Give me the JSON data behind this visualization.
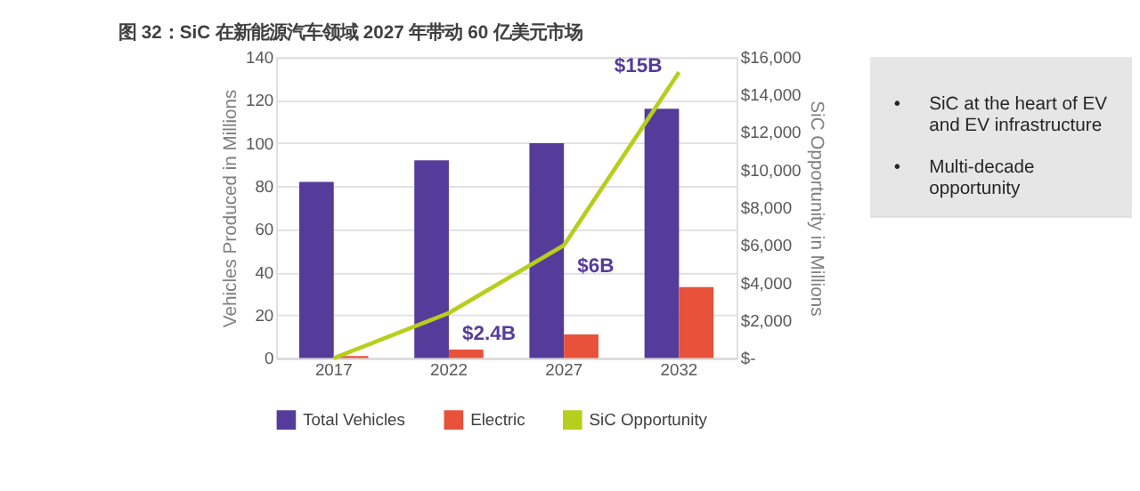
{
  "chart_data": [
    {
      "type": "bar",
      "title": "图 32：SiC 在新能源汽车领域 2027 年带动 60 亿美元市场",
      "categories": [
        "2017",
        "2022",
        "2027",
        "2032"
      ],
      "series": [
        {
          "name": "Total Vehicles",
          "color": "#553c9a",
          "values": [
            82,
            92,
            100,
            116
          ]
        },
        {
          "name": "Electric",
          "color": "#e8513a",
          "values": [
            1,
            4,
            11,
            33
          ]
        },
        {
          "name": "SiC Opportunity",
          "type": "line",
          "axis": "y2",
          "color": "#b5cf1c",
          "values": [
            0,
            2400,
            6000,
            15200
          ]
        }
      ],
      "ylabel": "Vehicles Produced in Millions",
      "y2label": "SiC Opportunity in Millions",
      "ylim": [
        0,
        140
      ],
      "yticks": [
        0,
        20,
        40,
        60,
        80,
        100,
        120,
        140
      ],
      "y2lim": [
        0,
        16000
      ],
      "y2ticks": [
        {
          "value": 0,
          "label": "$-"
        },
        {
          "value": 2000,
          "label": "$2,000"
        },
        {
          "value": 4000,
          "label": "$4,000"
        },
        {
          "value": 6000,
          "label": "$6,000"
        },
        {
          "value": 8000,
          "label": "$8,000"
        },
        {
          "value": 10000,
          "label": "$10,000"
        },
        {
          "value": 12000,
          "label": "$12,000"
        },
        {
          "value": 14000,
          "label": "$14,000"
        },
        {
          "value": 16000,
          "label": "$16,000"
        }
      ],
      "grid": "y",
      "legend": "bottom",
      "annotations": [
        "$2.4B",
        "$6B",
        "$15B"
      ]
    },
    {
      "type": "other",
      "annotations": [
        "• SiC at the heart of EV and EV infrastructure",
        "• Multi-decade opportunity"
      ]
    }
  ]
}
